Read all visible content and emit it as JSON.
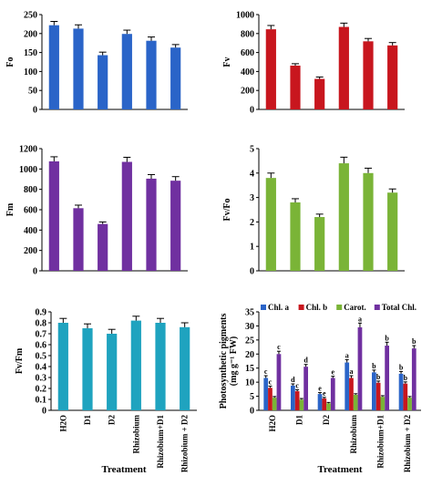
{
  "colors": {
    "blue": "#2a64c8",
    "red": "#c8161e",
    "purple": "#7030a0",
    "green": "#7ab437",
    "cyan": "#1fa3bf",
    "chl_a": "#2a64c8",
    "chl_b": "#c8161e",
    "carot": "#7ab437",
    "total": "#7030a0"
  },
  "chart_data": [
    {
      "type": "bar",
      "ylabel": "Fo",
      "ylim": [
        0,
        250
      ],
      "yticks": [
        0,
        50,
        100,
        150,
        200,
        250
      ],
      "categories": [
        "H2O",
        "D1",
        "D2",
        "Rhizobium",
        "Rhizobium+D1",
        "Rhizobium + D2"
      ],
      "values": [
        222,
        213,
        143,
        199,
        181,
        163
      ],
      "errors": [
        10,
        10,
        8,
        10,
        10,
        8
      ],
      "color": "blue",
      "show_categories": false,
      "xlabel": ""
    },
    {
      "type": "bar",
      "ylabel": "Fv",
      "ylim": [
        0,
        1000
      ],
      "yticks": [
        0,
        200,
        400,
        600,
        800,
        1000
      ],
      "categories": [
        "H2O",
        "D1",
        "D2",
        "Rhizobium",
        "Rhizobium+D1",
        "Rhizobium + D2"
      ],
      "values": [
        845,
        462,
        322,
        870,
        718,
        675
      ],
      "errors": [
        40,
        20,
        20,
        40,
        30,
        30
      ],
      "color": "red",
      "show_categories": false,
      "xlabel": ""
    },
    {
      "type": "bar",
      "ylabel": "Fm",
      "ylim": [
        0,
        1200
      ],
      "yticks": [
        0,
        200,
        400,
        600,
        800,
        1000,
        1200
      ],
      "categories": [
        "H2O",
        "D1",
        "D2",
        "Rhizobium",
        "Rhizobium+D1",
        "Rhizobium + D2"
      ],
      "values": [
        1075,
        615,
        460,
        1070,
        905,
        885
      ],
      "errors": [
        45,
        30,
        20,
        45,
        40,
        40
      ],
      "color": "purple",
      "show_categories": false,
      "xlabel": ""
    },
    {
      "type": "bar",
      "ylabel": "Fv/Fo",
      "ylim": [
        0,
        5
      ],
      "yticks": [
        0,
        1,
        2,
        3,
        4,
        5
      ],
      "categories": [
        "H2O",
        "D1",
        "D2",
        "Rhizobium",
        "Rhizobium+D1",
        "Rhizobium + D2"
      ],
      "values": [
        3.8,
        2.8,
        2.2,
        4.4,
        4.0,
        3.2
      ],
      "errors": [
        0.2,
        0.15,
        0.12,
        0.25,
        0.2,
        0.15
      ],
      "color": "green",
      "show_categories": false,
      "xlabel": ""
    },
    {
      "type": "bar",
      "ylabel": "Fv/Fm",
      "ylim": [
        0,
        0.9
      ],
      "yticks": [
        0,
        0.1,
        0.2,
        0.3,
        0.4,
        0.5,
        0.6,
        0.7,
        0.8,
        0.9
      ],
      "categories": [
        "H2O",
        "D1",
        "D2",
        "Rhizobium",
        "Rhizobium+D1",
        "Rhizobium + D2"
      ],
      "values": [
        0.8,
        0.75,
        0.7,
        0.82,
        0.8,
        0.76
      ],
      "errors": [
        0.04,
        0.04,
        0.04,
        0.04,
        0.04,
        0.04
      ],
      "color": "cyan",
      "show_categories": true,
      "xlabel": "Treatment"
    },
    {
      "type": "bar",
      "ylabel": "Photosynthetic pigments (mg g⁻¹ FW)",
      "ylim": [
        0,
        35
      ],
      "yticks": [
        0,
        5,
        10,
        15,
        20,
        25,
        30,
        35
      ],
      "categories": [
        "H2O",
        "D1",
        "D2",
        "Rhizobium",
        "Rhizobium+D1",
        "Rhizobium + D2"
      ],
      "series": [
        {
          "name": "Chl. a",
          "color": "chl_a",
          "values": [
            11.5,
            8.8,
            5.8,
            17.0,
            13.5,
            13.0
          ],
          "errors": [
            0.8,
            0.6,
            0.5,
            1.0,
            0.8,
            0.8
          ],
          "letters": [
            "c",
            "d",
            "e",
            "a",
            "b",
            "b"
          ]
        },
        {
          "name": "Chl. b",
          "color": "chl_b",
          "values": [
            8.0,
            6.8,
            4.2,
            11.5,
            9.8,
            9.5
          ],
          "errors": [
            0.6,
            0.5,
            0.4,
            0.8,
            0.6,
            0.6
          ],
          "letters": [
            "c",
            "c",
            "e",
            "a",
            "b",
            "b"
          ]
        },
        {
          "name": "Carot.",
          "color": "carot",
          "values": [
            4.5,
            3.8,
            2.5,
            5.5,
            4.8,
            4.5
          ],
          "errors": [
            0.4,
            0.4,
            0.3,
            0.4,
            0.4,
            0.4
          ],
          "letters": [
            "",
            "",
            "",
            "",
            "",
            ""
          ]
        },
        {
          "name": "Total Chl.",
          "color": "total",
          "values": [
            20.0,
            15.5,
            11.5,
            29.5,
            23.0,
            22.0
          ],
          "errors": [
            1.0,
            0.8,
            0.6,
            1.5,
            1.2,
            1.0
          ],
          "letters": [
            "c",
            "d",
            "e",
            "a",
            "b",
            "b"
          ]
        }
      ],
      "show_categories": true,
      "xlabel": "Treatment"
    }
  ]
}
